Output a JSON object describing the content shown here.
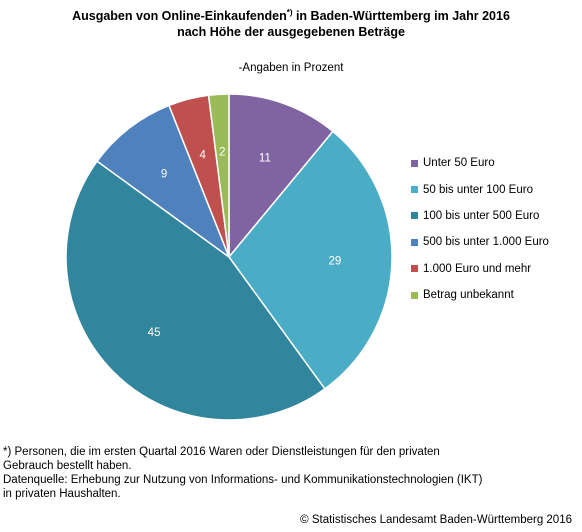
{
  "title_line1": "Ausgaben von Online-Einkaufenden",
  "title_marker": "*)",
  "title_line1_rest": " in Baden-Württemberg im Jahr 2016",
  "title_line2": "nach Höhe der ausgegebenen Beträge",
  "subtitle": "-Angaben in Prozent",
  "chart_data": {
    "type": "pie",
    "unit": "Prozent",
    "slices": [
      {
        "label": "Unter 50 Euro",
        "value": 11,
        "color": "#8064a2"
      },
      {
        "label": "50 bis unter 100 Euro",
        "value": 29,
        "color": "#4bacc6"
      },
      {
        "label": "100 bis unter 500 Euro",
        "value": 45,
        "color": "#31859c"
      },
      {
        "label": "500 bis unter 1.000 Euro",
        "value": 9,
        "color": "#4f81bd"
      },
      {
        "label": "1.000 Euro und mehr",
        "value": 4,
        "color": "#c0504d"
      },
      {
        "label": "Betrag unbekannt",
        "value": 2,
        "color": "#9bbb59"
      }
    ],
    "legend_position": "right"
  },
  "footnote": {
    "line1": "*) Personen, die im ersten Quartal 2016 Waren oder Dienstleistungen für den privaten",
    "line2": "Gebrauch bestellt haben.",
    "line3": "Datenquelle: Erhebung zur Nutzung von Informations- und Kommunikationstechnologien (IKT)",
    "line4": "in privaten Haushalten."
  },
  "copyright": "© Statistisches Landesamt Baden-Württemberg 2016"
}
